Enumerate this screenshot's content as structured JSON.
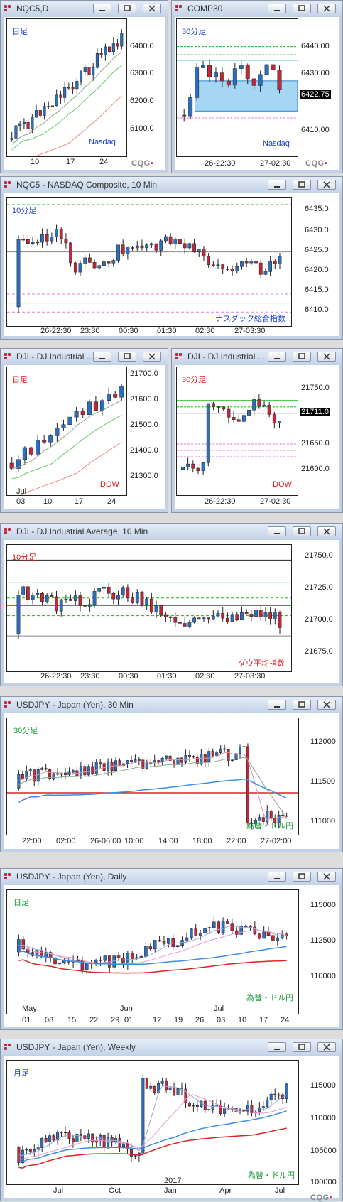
{
  "colors": {
    "up": "#2b6fbf",
    "down": "#c0283a",
    "green": "#16b816",
    "pink": "#e47be0",
    "blue_label": "#1e3fe0",
    "red_label": "#e01b1b",
    "green_label": "#1a9b3a"
  },
  "windows": [
    {
      "id": "w1",
      "title": "NQC5,D",
      "period_label": "日足",
      "period_color": "#1e3fe0",
      "corner_label": "Nasdaq",
      "corner_color": "#1e3fe0",
      "y_ticks": [
        "6400.0",
        "6300.0",
        "6200.0",
        "6100.0"
      ],
      "x_ticks": [
        "10",
        "17",
        "24"
      ],
      "logo": "CQG"
    },
    {
      "id": "w2",
      "title": "COMP30",
      "period_label": "30分足",
      "period_color": "#1e3fe0",
      "corner_label": "Nasdaq",
      "corner_color": "#1e3fe0",
      "y_ticks": [
        "6440.00",
        "6430.00",
        "6410.00"
      ],
      "price_tag": "6422.75",
      "x_ticks": [
        "26-22:30",
        "27-02:30"
      ],
      "logo": "CQG"
    },
    {
      "id": "w3",
      "title": "NQC5 - NASDAQ Composite, 10 Min",
      "period_label": "10分足",
      "period_color": "#1e3fe0",
      "corner_label": "ナスダック総合指数",
      "corner_color": "#1e3fe0",
      "y_ticks": [
        "6435.0",
        "6430.0",
        "6425.0",
        "6420.0",
        "6415.0",
        "6410.0"
      ],
      "x_ticks": [
        "26-22:30",
        "23:30",
        "00:30",
        "01:30",
        "02:30",
        "27-03:30"
      ]
    },
    {
      "id": "w4",
      "title": "DJI - DJ Industrial ...",
      "period_label": "日足",
      "period_color": "#e01b1b",
      "corner_label": "DOW",
      "corner_color": "#e01b1b",
      "y_ticks": [
        "21700.0",
        "21600.0",
        "21500.0",
        "21400.0",
        "21300.0"
      ],
      "x_top": "Jul",
      "x_ticks": [
        "03",
        "10",
        "17",
        "24"
      ]
    },
    {
      "id": "w5",
      "title": "DJI - DJ Industrial ...",
      "period_label": "30分足",
      "period_color": "#e01b1b",
      "corner_label": "DOW",
      "corner_color": "#e01b1b",
      "y_ticks": [
        "21750.0",
        "21650.0",
        "21600.0"
      ],
      "price_tag": "21711.0",
      "x_ticks": [
        "26-22:30",
        "27-02:30"
      ]
    },
    {
      "id": "w6",
      "title": "DJI - DJ Industrial Average, 10 Min",
      "period_label": "10分足",
      "period_color": "#e01b1b",
      "corner_label": "ダウ平均指数",
      "corner_color": "#e01b1b",
      "y_ticks": [
        "21750.0",
        "21725.0",
        "21700.0",
        "21675.0"
      ],
      "x_ticks": [
        "26-22:30",
        "23:30",
        "00:30",
        "01:30",
        "02:30",
        "27-03:30"
      ]
    },
    {
      "id": "w7",
      "title": "USDJPY - Japan (Yen), 30 Min",
      "period_label": "30分足",
      "period_color": "#1a9b3a",
      "corner_label": "為替・ドル円",
      "corner_color": "#1a9b3a",
      "y_ticks": [
        "112000",
        "111500",
        "111000"
      ],
      "x_ticks": [
        "22:00",
        "02:00",
        "26-06:00",
        "10:00",
        "14:00",
        "18:00",
        "22:00",
        "27-02:00"
      ]
    },
    {
      "id": "w8",
      "title": "USDJPY - Japan (Yen), Daily",
      "period_label": "日足",
      "period_color": "#1a9b3a",
      "corner_label": "為替・ドル円",
      "corner_color": "#1a9b3a",
      "y_ticks": [
        "115000",
        "112500",
        "110000"
      ],
      "x_top": [
        "May",
        "Jun",
        "Jul"
      ],
      "x_ticks": [
        "01",
        "08",
        "15",
        "22",
        "29",
        "01",
        "12",
        "19",
        "26",
        "03",
        "10",
        "17",
        "24"
      ]
    },
    {
      "id": "w9",
      "title": "USDJPY - Japan (Yen), Weekly",
      "period_label": "月足",
      "period_color": "#1e3fe0",
      "corner_label": "為替・ドル円",
      "corner_color": "#1a9b3a",
      "y_ticks": [
        "115000",
        "110000",
        "105000",
        "100000"
      ],
      "x_top": "2017",
      "x_ticks": [
        "Jul",
        "Oct",
        "Jan",
        "Apr",
        "Jul"
      ],
      "logo": "CQG"
    }
  ]
}
